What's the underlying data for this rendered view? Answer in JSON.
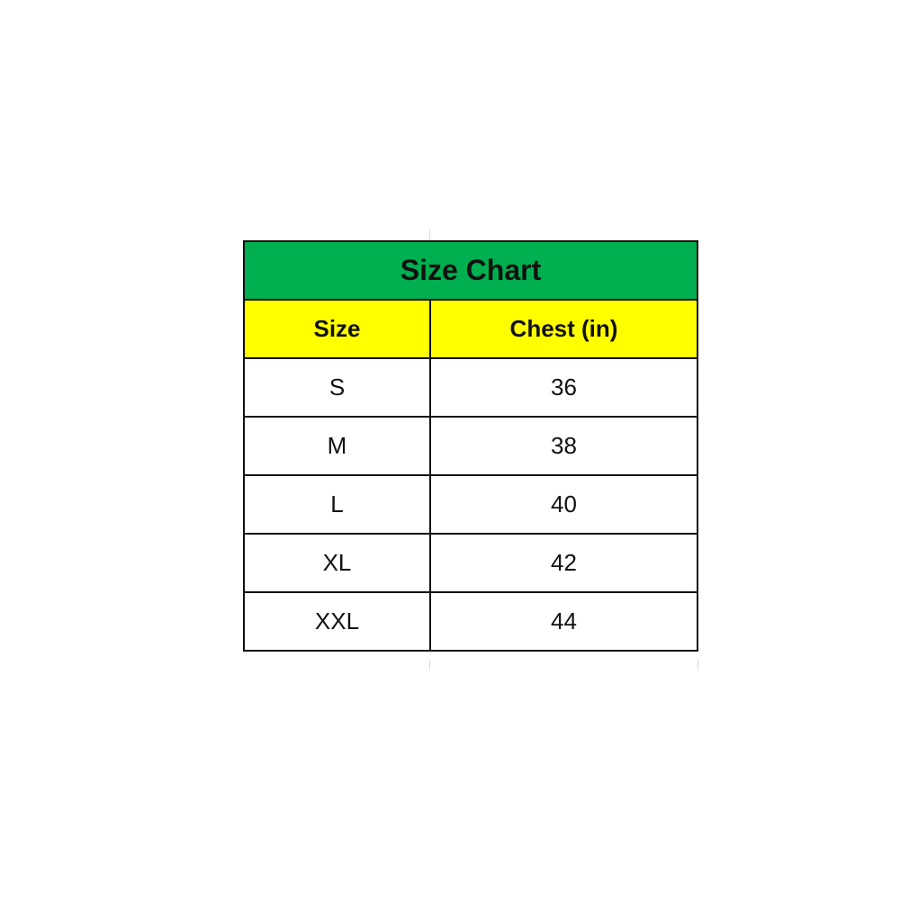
{
  "table": {
    "title": "Size Chart",
    "title_bg": "#00b050",
    "header_bg": "#ffff00",
    "headers": [
      "Size",
      "Chest (in)"
    ],
    "rows": [
      [
        "S",
        "36"
      ],
      [
        "M",
        "38"
      ],
      [
        "L",
        "40"
      ],
      [
        "XL",
        "42"
      ],
      [
        "XXL",
        "44"
      ]
    ]
  }
}
